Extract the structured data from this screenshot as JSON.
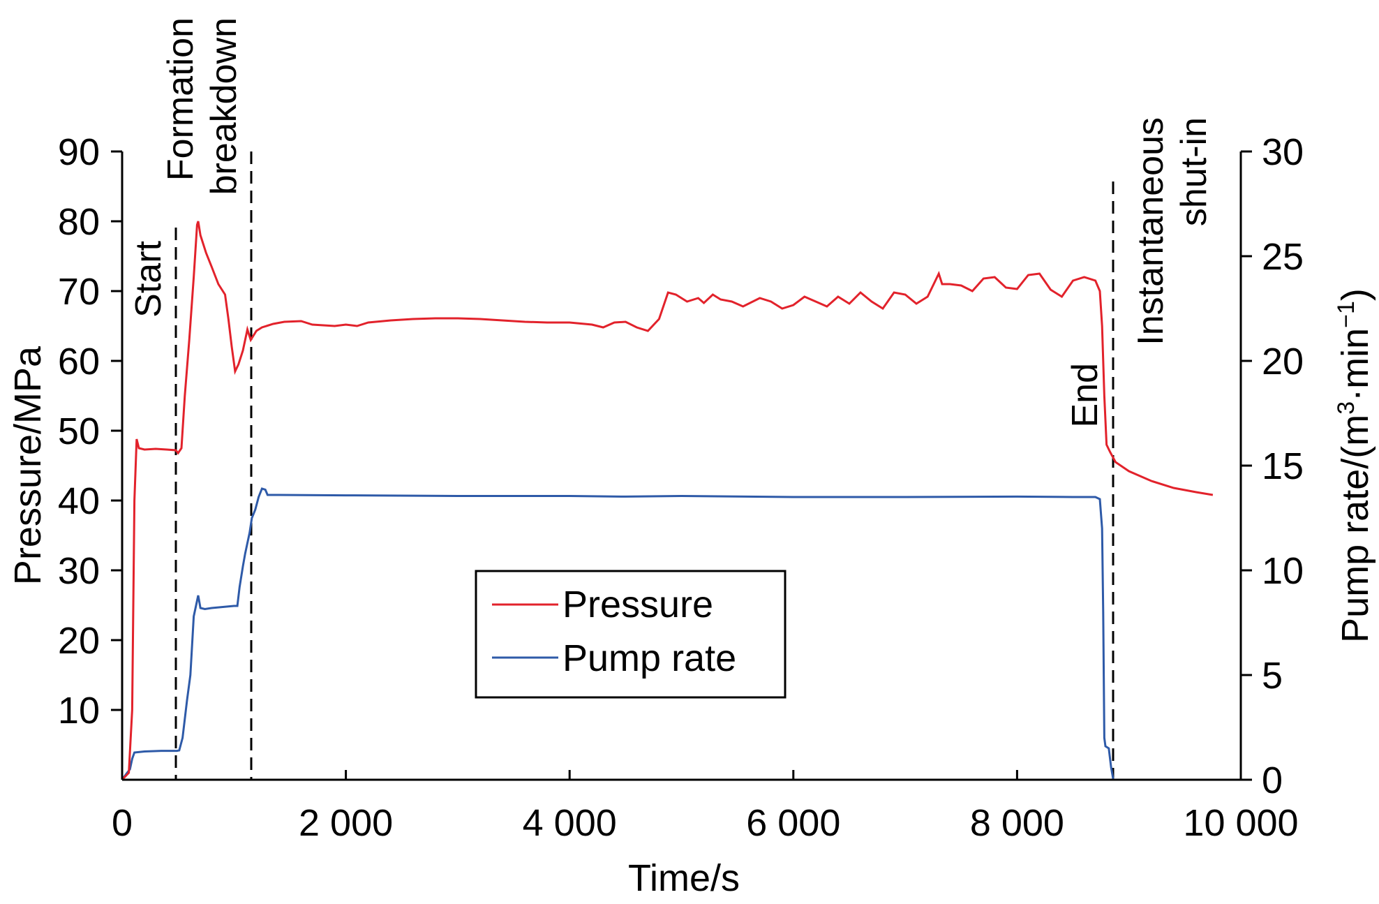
{
  "chart_data": {
    "type": "line",
    "x_axis": {
      "label": "Time/s",
      "range": [
        0,
        10000
      ],
      "ticks": [
        0,
        2000,
        4000,
        6000,
        8000,
        10000
      ],
      "tick_labels": [
        "0",
        "2 000",
        "4 000",
        "6 000",
        "8 000",
        "10 000"
      ]
    },
    "y_left": {
      "label": "Pressure/MPa",
      "range": [
        0,
        90
      ],
      "ticks": [
        10,
        20,
        30,
        40,
        50,
        60,
        70,
        80,
        90
      ],
      "tick_labels": [
        "10",
        "20",
        "30",
        "40",
        "50",
        "60",
        "70",
        "80",
        "90"
      ]
    },
    "y_right": {
      "label_main": "Pump rate/(m",
      "label_sup1": "3",
      "label_mid": "·min",
      "label_sup2": "−1",
      "label_end": ")",
      "range": [
        0,
        30
      ],
      "ticks": [
        0,
        5,
        10,
        15,
        20,
        25,
        30
      ],
      "tick_labels": [
        "0",
        "5",
        "10",
        "15",
        "20",
        "25",
        "30"
      ]
    },
    "legend": {
      "placement": "center",
      "entries": [
        "Pressure",
        "Pump rate"
      ]
    },
    "grid": false,
    "annotations": [
      {
        "lines": [
          "Start"
        ],
        "x": 490
      },
      {
        "lines": [
          "Formation",
          "breakdown"
        ],
        "x": 1150
      },
      {
        "lines": [
          "End"
        ],
        "x": 8750
      },
      {
        "lines": [
          "Instantaneous",
          "shut-in"
        ],
        "x": 8750
      }
    ],
    "series": [
      {
        "name": "Pressure",
        "axis": "left",
        "color": "#e2222b",
        "points": [
          [
            0,
            0
          ],
          [
            60,
            1
          ],
          [
            90,
            10
          ],
          [
            110,
            40
          ],
          [
            130,
            48.8
          ],
          [
            150,
            47.5
          ],
          [
            200,
            47.3
          ],
          [
            300,
            47.4
          ],
          [
            400,
            47.3
          ],
          [
            480,
            47.2
          ],
          [
            500,
            46.8
          ],
          [
            530,
            47.5
          ],
          [
            560,
            55
          ],
          [
            600,
            63
          ],
          [
            640,
            72
          ],
          [
            670,
            79.5
          ],
          [
            680,
            80
          ],
          [
            700,
            78
          ],
          [
            750,
            75.5
          ],
          [
            800,
            73.5
          ],
          [
            860,
            71
          ],
          [
            920,
            69.5
          ],
          [
            950,
            66
          ],
          [
            980,
            62
          ],
          [
            1010,
            58.5
          ],
          [
            1040,
            59.5
          ],
          [
            1080,
            61.5
          ],
          [
            1100,
            63
          ],
          [
            1120,
            64.5
          ],
          [
            1150,
            63
          ],
          [
            1200,
            64.3
          ],
          [
            1250,
            64.8
          ],
          [
            1350,
            65.3
          ],
          [
            1450,
            65.6
          ],
          [
            1600,
            65.7
          ],
          [
            1700,
            65.2
          ],
          [
            1800,
            65.1
          ],
          [
            1900,
            65
          ],
          [
            2000,
            65.2
          ],
          [
            2100,
            65
          ],
          [
            2200,
            65.5
          ],
          [
            2400,
            65.8
          ],
          [
            2600,
            66
          ],
          [
            2800,
            66.1
          ],
          [
            3000,
            66.1
          ],
          [
            3200,
            66
          ],
          [
            3400,
            65.8
          ],
          [
            3600,
            65.6
          ],
          [
            3800,
            65.5
          ],
          [
            4000,
            65.5
          ],
          [
            4200,
            65.2
          ],
          [
            4300,
            64.8
          ],
          [
            4400,
            65.5
          ],
          [
            4500,
            65.6
          ],
          [
            4600,
            64.8
          ],
          [
            4700,
            64.3
          ],
          [
            4800,
            66
          ],
          [
            4880,
            69.8
          ],
          [
            4950,
            69.5
          ],
          [
            5050,
            68.5
          ],
          [
            5150,
            69
          ],
          [
            5200,
            68.3
          ],
          [
            5280,
            69.5
          ],
          [
            5350,
            68.8
          ],
          [
            5450,
            68.5
          ],
          [
            5550,
            67.8
          ],
          [
            5700,
            69
          ],
          [
            5800,
            68.5
          ],
          [
            5900,
            67.5
          ],
          [
            6000,
            68
          ],
          [
            6100,
            69.2
          ],
          [
            6200,
            68.5
          ],
          [
            6300,
            67.8
          ],
          [
            6400,
            69.2
          ],
          [
            6500,
            68.2
          ],
          [
            6600,
            69.8
          ],
          [
            6700,
            68.5
          ],
          [
            6800,
            67.5
          ],
          [
            6900,
            69.8
          ],
          [
            7000,
            69.5
          ],
          [
            7100,
            68.2
          ],
          [
            7200,
            69.2
          ],
          [
            7300,
            72.5
          ],
          [
            7330,
            71
          ],
          [
            7400,
            71
          ],
          [
            7500,
            70.8
          ],
          [
            7600,
            70
          ],
          [
            7700,
            71.8
          ],
          [
            7800,
            72
          ],
          [
            7900,
            70.5
          ],
          [
            8000,
            70.3
          ],
          [
            8100,
            72.3
          ],
          [
            8200,
            72.5
          ],
          [
            8300,
            70.2
          ],
          [
            8400,
            69.2
          ],
          [
            8500,
            71.5
          ],
          [
            8600,
            72
          ],
          [
            8700,
            71.5
          ],
          [
            8740,
            70
          ],
          [
            8760,
            65
          ],
          [
            8780,
            55
          ],
          [
            8800,
            48
          ],
          [
            8830,
            47
          ],
          [
            8880,
            45.5
          ],
          [
            9000,
            44.2
          ],
          [
            9200,
            42.8
          ],
          [
            9400,
            41.8
          ],
          [
            9600,
            41.2
          ],
          [
            9750,
            40.8
          ]
        ]
      },
      {
        "name": "Pump rate",
        "axis": "right",
        "color": "#2e5aa8",
        "points": [
          [
            0,
            0
          ],
          [
            40,
            0.3
          ],
          [
            70,
            0.5
          ],
          [
            90,
            1.0
          ],
          [
            110,
            1.3
          ],
          [
            200,
            1.35
          ],
          [
            350,
            1.38
          ],
          [
            490,
            1.38
          ],
          [
            510,
            1.4
          ],
          [
            540,
            2
          ],
          [
            580,
            3.8
          ],
          [
            610,
            5
          ],
          [
            640,
            7.8
          ],
          [
            660,
            8.3
          ],
          [
            680,
            8.8
          ],
          [
            700,
            8.2
          ],
          [
            740,
            8.15
          ],
          [
            800,
            8.2
          ],
          [
            900,
            8.25
          ],
          [
            1000,
            8.3
          ],
          [
            1030,
            8.3
          ],
          [
            1050,
            9.2
          ],
          [
            1080,
            10.2
          ],
          [
            1100,
            10.8
          ],
          [
            1140,
            11.8
          ],
          [
            1160,
            12.5
          ],
          [
            1190,
            12.9
          ],
          [
            1220,
            13.5
          ],
          [
            1250,
            13.9
          ],
          [
            1280,
            13.85
          ],
          [
            1300,
            13.6
          ],
          [
            1400,
            13.6
          ],
          [
            2000,
            13.58
          ],
          [
            3000,
            13.55
          ],
          [
            4000,
            13.55
          ],
          [
            4500,
            13.52
          ],
          [
            5000,
            13.55
          ],
          [
            6000,
            13.5
          ],
          [
            7000,
            13.5
          ],
          [
            8000,
            13.52
          ],
          [
            8500,
            13.5
          ],
          [
            8700,
            13.5
          ],
          [
            8740,
            13.4
          ],
          [
            8760,
            12
          ],
          [
            8770,
            8
          ],
          [
            8780,
            2
          ],
          [
            8790,
            1.6
          ],
          [
            8820,
            1.5
          ],
          [
            8840,
            0.6
          ],
          [
            8860,
            0
          ],
          [
            9000,
            0
          ],
          [
            9500,
            0
          ],
          [
            10000,
            0
          ]
        ]
      }
    ]
  }
}
